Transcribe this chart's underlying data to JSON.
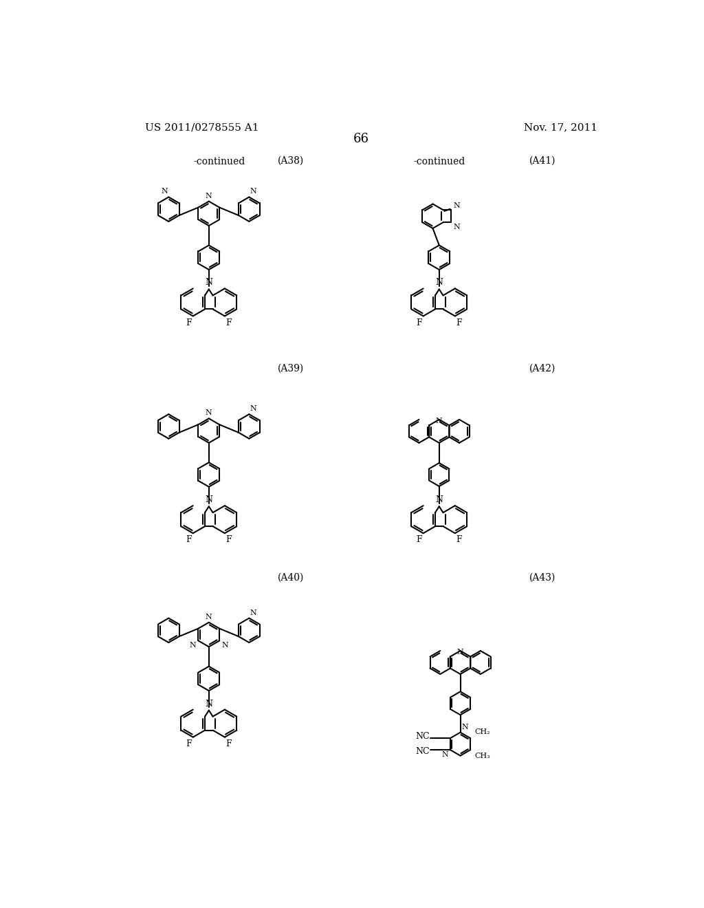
{
  "page_number": "66",
  "patent_number": "US 2011/0278555 A1",
  "patent_date": "Nov. 17, 2011",
  "background_color": "#ffffff",
  "text_color": "#000000"
}
